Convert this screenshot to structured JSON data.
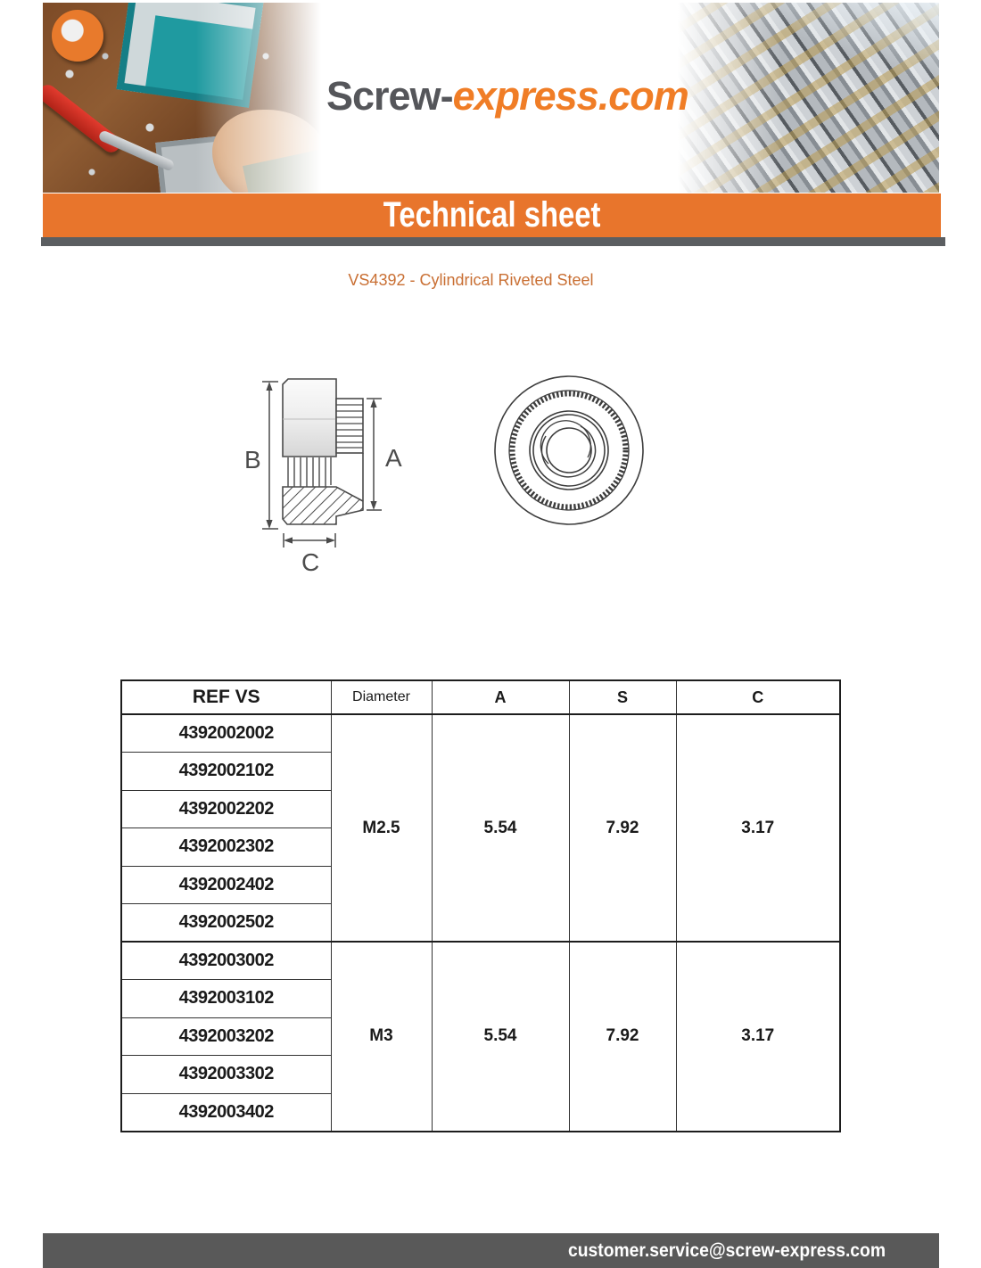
{
  "logo": {
    "text_primary": "Screw-",
    "text_secondary": "express.com"
  },
  "banner": {
    "title": "Technical sheet"
  },
  "product": {
    "subtitle": "VS4392 - Cylindrical Riveted Steel"
  },
  "diagram": {
    "labels": {
      "b": "B",
      "a": "A",
      "c": "C"
    }
  },
  "table": {
    "headers": [
      "REF VS",
      "Diameter",
      "A",
      "S",
      "C"
    ],
    "groups": [
      {
        "refs": [
          "4392002002",
          "4392002102",
          "4392002202",
          "4392002302",
          "4392002402",
          "4392002502"
        ],
        "diameter": "M2.5",
        "a": "5.54",
        "s": "7.92",
        "c": "3.17"
      },
      {
        "refs": [
          "4392003002",
          "4392003102",
          "4392003202",
          "4392003302",
          "4392003402"
        ],
        "diameter": "M3",
        "a": "5.54",
        "s": "7.92",
        "c": "3.17"
      }
    ]
  },
  "footer": {
    "email": "customer.service@screw-express.com"
  },
  "colors": {
    "brand_orange": "#e8752c",
    "logo_orange": "#f07d26",
    "logo_gray": "#55565a",
    "subtitle_orange": "#c96f33",
    "bar_gray": "#5b5e61",
    "footer_gray": "#595959",
    "table_border": "#1d1d1d"
  }
}
